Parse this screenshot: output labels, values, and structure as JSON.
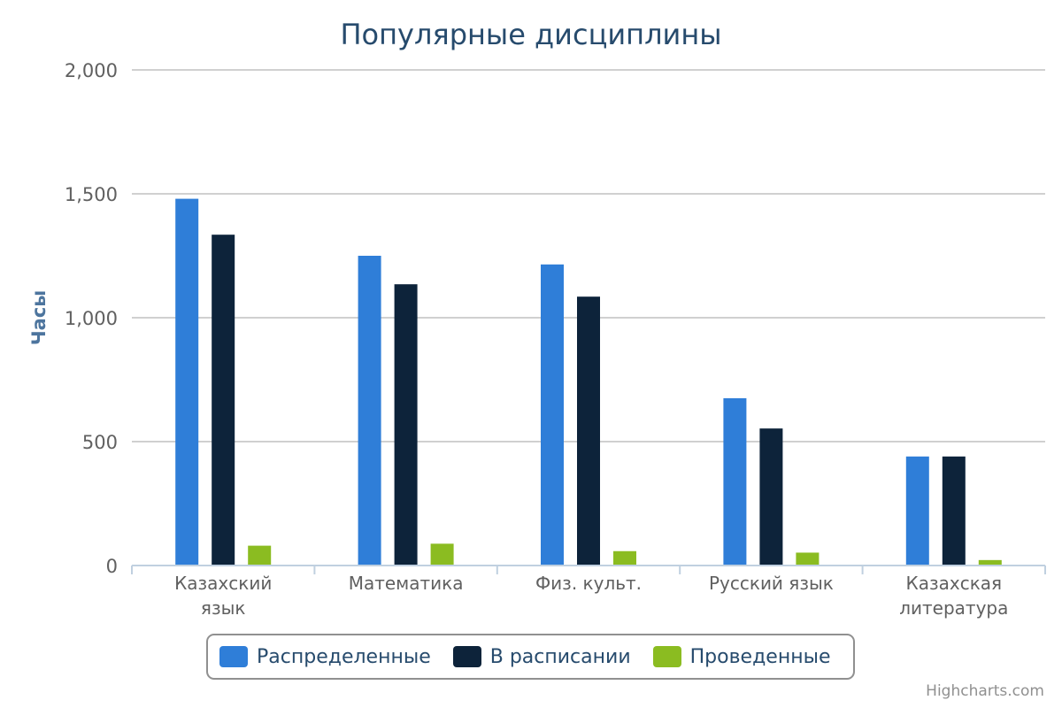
{
  "chart_data": {
    "type": "bar",
    "title": "Популярные дисциплины",
    "ylabel": "Часы",
    "xlabel": "",
    "ylim": [
      0,
      2000
    ],
    "yticks": [
      0,
      500,
      1000,
      1500,
      2000
    ],
    "ytick_labels": [
      "0",
      "500",
      "1,000",
      "1,500",
      "2,000"
    ],
    "categories": [
      [
        "Казахский",
        "язык"
      ],
      [
        "Математика"
      ],
      [
        "Физ. культ."
      ],
      [
        "Русский язык"
      ],
      [
        "Казахская",
        "литература"
      ]
    ],
    "series": [
      {
        "name": "Распределенные",
        "color": "#2f7ed8",
        "values": [
          1480,
          1250,
          1215,
          675,
          440
        ]
      },
      {
        "name": "В расписании",
        "color": "#0d233a",
        "values": [
          1335,
          1135,
          1085,
          553,
          440
        ]
      },
      {
        "name": "Проведенные",
        "color": "#8bbc21",
        "values": [
          80,
          88,
          58,
          52,
          22
        ]
      }
    ],
    "grid": true,
    "legend_position": "bottom-center"
  },
  "credits": "Highcharts.com"
}
